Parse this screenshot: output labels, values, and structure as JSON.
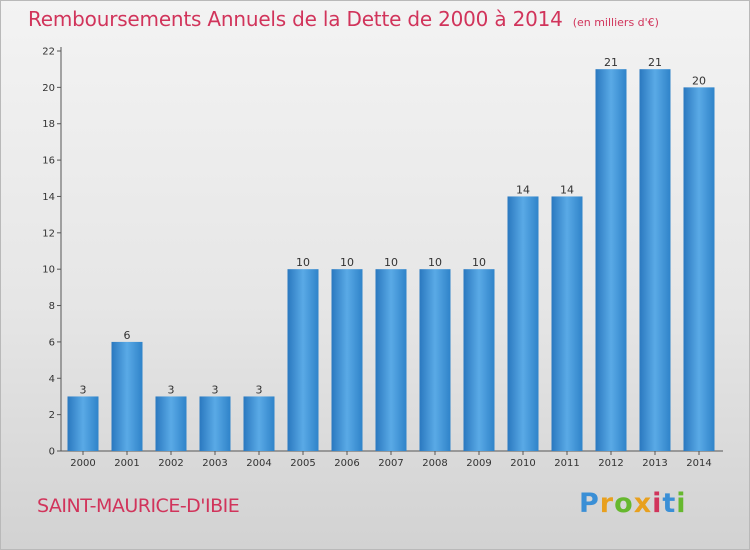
{
  "chart_data": {
    "type": "bar",
    "title": "Remboursements Annuels de la Dette de 2000 à 2014",
    "unit_note": "(en milliers d'€)",
    "xlabel": "",
    "ylabel": "",
    "categories": [
      "2000",
      "2001",
      "2002",
      "2003",
      "2004",
      "2005",
      "2006",
      "2007",
      "2008",
      "2009",
      "2010",
      "2011",
      "2012",
      "2013",
      "2014"
    ],
    "values": [
      3,
      6,
      3,
      3,
      3,
      10,
      10,
      10,
      10,
      10,
      14,
      14,
      21,
      21,
      20
    ],
    "ylim": [
      0,
      22
    ],
    "yticks": [
      0,
      2,
      4,
      6,
      8,
      10,
      12,
      14,
      16,
      18,
      20,
      22
    ],
    "grid": false,
    "legend": "none",
    "bar_color": "#3f8fd2"
  },
  "footer": {
    "commune": "SAINT-MAURICE-D'IBIE",
    "brand": {
      "letters": [
        "P",
        "r",
        "o",
        "x",
        "i",
        "t",
        "i"
      ],
      "colors": [
        "#3a8fd6",
        "#e8a01e",
        "#66b82e",
        "#e8a01e",
        "#d1345b",
        "#3a8fd6",
        "#66b82e"
      ]
    }
  },
  "colors": {
    "accent": "#d1345b"
  }
}
